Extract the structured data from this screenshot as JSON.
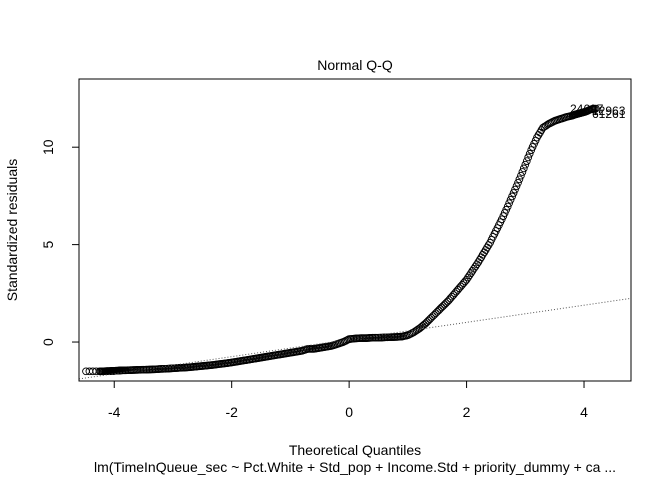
{
  "chart_data": {
    "type": "scatter",
    "title": "Normal Q-Q",
    "xlabel": "Theoretical Quantiles",
    "ylabel": "Standardized residuals",
    "subtitle": "lm(TimeInQueue_sec ~ Pct.White + Std_pop + Income.Std + priority_dummy + ca ...",
    "xlim": [
      -4.6,
      4.8
    ],
    "ylim": [
      -2.0,
      13.5
    ],
    "x_ticks": [
      -4,
      -2,
      0,
      2,
      4
    ],
    "y_ticks": [
      0,
      5,
      10
    ],
    "grid": false,
    "point_style": "open-circle",
    "outlier_labels": [
      "24697",
      "12963",
      "61261"
    ],
    "reference_line": {
      "style": "dotted",
      "intercept": 0.13,
      "slope": 0.44
    },
    "series": [
      {
        "x": [
          -4.48,
          -4.25,
          -4.18,
          -4.12,
          -4.07,
          -4.03,
          -4.0,
          -3.97,
          -3.94,
          -3.9,
          -3.85,
          -3.8,
          -3.7,
          -3.6,
          -3.5,
          -3.4,
          -3.3,
          -3.2,
          -3.1,
          -3.0,
          -2.9,
          -2.8,
          -2.7,
          -2.6,
          -2.5,
          -2.4,
          -2.3,
          -2.2,
          -2.1,
          -2.0,
          -1.9,
          -1.8,
          -1.7,
          -1.6,
          -1.5,
          -1.4,
          -1.3,
          -1.2,
          -1.1,
          -1.0,
          -0.9,
          -0.8,
          -0.7,
          -0.6,
          -0.5,
          -0.4,
          -0.3,
          -0.2,
          -0.1,
          0.0,
          0.1,
          0.2,
          0.3,
          0.4,
          0.5,
          0.6,
          0.7,
          0.8,
          0.9,
          1.0,
          1.1,
          1.2,
          1.3,
          1.4,
          1.5,
          1.6,
          1.7,
          1.8,
          1.9,
          2.0,
          2.1,
          2.2,
          2.3,
          2.4,
          2.5,
          2.6,
          2.7,
          2.8,
          2.9,
          3.0,
          3.1,
          3.2,
          3.3,
          3.4,
          3.5,
          3.6,
          3.7,
          3.8,
          3.85,
          3.9,
          3.95,
          4.0,
          4.05,
          4.12,
          4.2
        ],
        "y": [
          -1.5,
          -1.5,
          -1.5,
          -1.49,
          -1.49,
          -1.48,
          -1.48,
          -1.47,
          -1.47,
          -1.46,
          -1.45,
          -1.45,
          -1.44,
          -1.43,
          -1.42,
          -1.41,
          -1.4,
          -1.38,
          -1.37,
          -1.35,
          -1.33,
          -1.31,
          -1.29,
          -1.26,
          -1.23,
          -1.2,
          -1.17,
          -1.13,
          -1.09,
          -1.05,
          -1.0,
          -0.95,
          -0.9,
          -0.85,
          -0.8,
          -0.75,
          -0.7,
          -0.65,
          -0.6,
          -0.55,
          -0.5,
          -0.45,
          -0.35,
          -0.35,
          -0.3,
          -0.25,
          -0.2,
          -0.1,
          0.0,
          0.15,
          0.18,
          0.2,
          0.2,
          0.22,
          0.22,
          0.24,
          0.25,
          0.26,
          0.28,
          0.35,
          0.5,
          0.7,
          0.95,
          1.25,
          1.55,
          1.85,
          2.15,
          2.5,
          2.85,
          3.2,
          3.65,
          4.1,
          4.6,
          5.1,
          5.7,
          6.3,
          6.95,
          7.65,
          8.35,
          9.1,
          9.85,
          10.5,
          11.0,
          11.2,
          11.35,
          11.45,
          11.55,
          11.62,
          11.68,
          11.72,
          11.76,
          11.8,
          11.85,
          11.95,
          11.98
        ]
      }
    ]
  }
}
